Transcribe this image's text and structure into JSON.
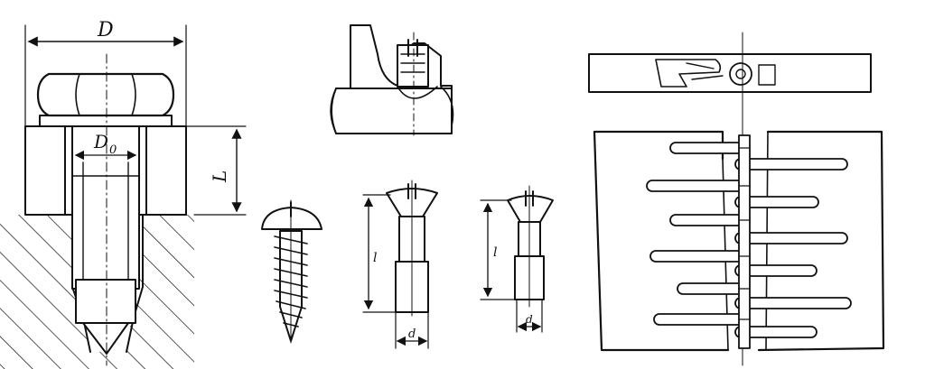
{
  "figure": {
    "panel_hex_bolt": {
      "label_D": "D",
      "label_D0": "D",
      "label_D0_sub": "0",
      "label_L": "L"
    },
    "panel_set_screw": {},
    "panel_wood_screw": {},
    "panel_countersunk_long": {
      "label_l": "l",
      "label_d": "d"
    },
    "panel_countersunk_short": {
      "label_l": "l",
      "label_d": "d"
    },
    "panel_belt_lacing": {}
  },
  "colors": {
    "ink": "#111111",
    "paper": "#ffffff"
  }
}
